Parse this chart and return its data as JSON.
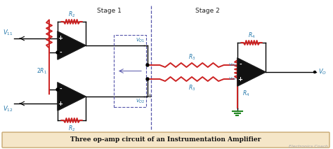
{
  "bg_color": "#ffffff",
  "caption_bg": "#f5e6c8",
  "caption_border": "#c8a870",
  "caption_text": "Three op-amp circuit of an Instrumentation Amplifier",
  "watermark": "Electronics Coach",
  "stage1_label": "Stage 1",
  "stage2_label": "Stage 2",
  "wire_color": "#000000",
  "resistor_color": "#cc2222",
  "label_color": "#2277aa",
  "dashed_color": "#5555aa",
  "opamp_fill": "#111111",
  "fig_width": 4.74,
  "fig_height": 2.13,
  "dpi": 100
}
